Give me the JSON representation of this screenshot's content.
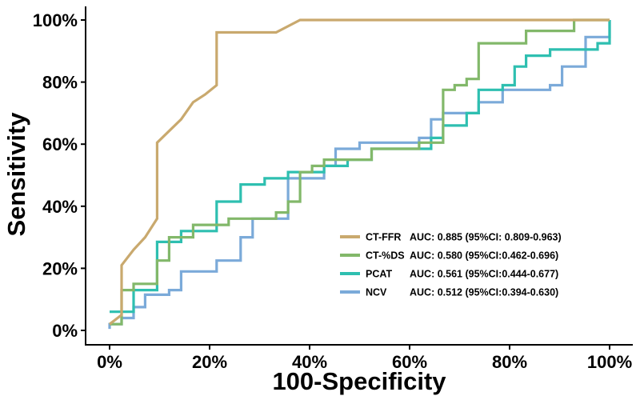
{
  "chart_data": {
    "type": "line",
    "title": "",
    "xlabel": "100-Specificity",
    "ylabel": "Sensitivity",
    "xlim": [
      0,
      100
    ],
    "ylim": [
      0,
      100
    ],
    "x_ticks": [
      "0%",
      "20%",
      "40%",
      "60%",
      "80%",
      "100%"
    ],
    "y_ticks": [
      "0%",
      "20%",
      "40%",
      "60%",
      "80%",
      "100%"
    ],
    "grid": false,
    "legend_position": "bottom-right",
    "series": [
      {
        "name": "CT-FFR",
        "auc_label": "AUC: 0.885 (95%CI: 0.809-0.963)",
        "color": "#C9A96E",
        "points": [
          [
            0,
            2
          ],
          [
            2.4,
            5
          ],
          [
            2.4,
            21
          ],
          [
            4.8,
            26
          ],
          [
            7.1,
            30
          ],
          [
            9.5,
            36
          ],
          [
            9.5,
            60.5
          ],
          [
            14.3,
            68
          ],
          [
            16.7,
            73.5
          ],
          [
            19.1,
            76
          ],
          [
            21.4,
            79
          ],
          [
            21.4,
            96
          ],
          [
            33.3,
            96
          ],
          [
            38.1,
            100
          ],
          [
            100,
            100
          ]
        ]
      },
      {
        "name": "CT-%DS",
        "auc_label": "AUC: 0.580 (95%CI:0.462-0.696)",
        "color": "#82B86A",
        "points": [
          [
            0,
            2
          ],
          [
            2.4,
            2
          ],
          [
            2.4,
            13
          ],
          [
            4.8,
            13
          ],
          [
            4.8,
            15
          ],
          [
            9.5,
            15
          ],
          [
            9.5,
            22.5
          ],
          [
            11.9,
            22.5
          ],
          [
            11.9,
            30
          ],
          [
            16.7,
            30
          ],
          [
            16.7,
            34
          ],
          [
            23.8,
            34
          ],
          [
            23.8,
            36
          ],
          [
            33.3,
            36
          ],
          [
            33.3,
            38
          ],
          [
            35.7,
            38
          ],
          [
            35.7,
            41.5
          ],
          [
            38.1,
            41.5
          ],
          [
            38.1,
            51
          ],
          [
            40.5,
            51
          ],
          [
            40.5,
            53
          ],
          [
            42.9,
            53
          ],
          [
            42.9,
            55
          ],
          [
            52.4,
            55
          ],
          [
            52.4,
            58.5
          ],
          [
            61.9,
            58.5
          ],
          [
            61.9,
            60.5
          ],
          [
            66.7,
            60.5
          ],
          [
            66.7,
            77.5
          ],
          [
            69,
            77.5
          ],
          [
            69,
            79
          ],
          [
            71.4,
            79
          ],
          [
            71.4,
            81
          ],
          [
            73.8,
            81
          ],
          [
            73.8,
            92.5
          ],
          [
            83.3,
            92.5
          ],
          [
            83.3,
            96.5
          ],
          [
            92.9,
            96.5
          ],
          [
            92.9,
            100
          ],
          [
            100,
            100
          ]
        ]
      },
      {
        "name": "PCAT",
        "auc_label": "AUC: 0.561 (95%CI:0.444-0.677)",
        "color": "#2EBFB0",
        "points": [
          [
            0,
            6
          ],
          [
            4.8,
            6
          ],
          [
            4.8,
            13
          ],
          [
            9.5,
            13
          ],
          [
            9.5,
            28.5
          ],
          [
            14.3,
            28.5
          ],
          [
            14.3,
            32
          ],
          [
            21.4,
            32
          ],
          [
            21.4,
            41.5
          ],
          [
            26.2,
            41.5
          ],
          [
            26.2,
            47
          ],
          [
            31,
            47
          ],
          [
            31,
            49
          ],
          [
            35.7,
            49
          ],
          [
            35.7,
            51
          ],
          [
            42.9,
            51
          ],
          [
            42.9,
            53
          ],
          [
            47.6,
            53
          ],
          [
            47.6,
            55
          ],
          [
            52.4,
            55
          ],
          [
            52.4,
            58.5
          ],
          [
            64.3,
            58.5
          ],
          [
            64.3,
            62
          ],
          [
            66.7,
            62
          ],
          [
            66.7,
            66
          ],
          [
            71.4,
            66
          ],
          [
            71.4,
            70
          ],
          [
            73.8,
            70
          ],
          [
            73.8,
            77.5
          ],
          [
            78.6,
            77.5
          ],
          [
            78.6,
            79
          ],
          [
            81,
            79
          ],
          [
            81,
            85
          ],
          [
            83.3,
            85
          ],
          [
            83.3,
            88.5
          ],
          [
            88.1,
            88.5
          ],
          [
            88.1,
            90.5
          ],
          [
            97.6,
            90.5
          ],
          [
            97.6,
            92.5
          ],
          [
            100,
            92.5
          ],
          [
            100,
            100
          ]
        ]
      },
      {
        "name": "NCV",
        "auc_label": "AUC: 0.512 (95%CI:0.394-0.630)",
        "color": "#7BAAD9",
        "points": [
          [
            0,
            0.5
          ],
          [
            0,
            2
          ],
          [
            2.4,
            2
          ],
          [
            2.4,
            4
          ],
          [
            4.8,
            4
          ],
          [
            4.8,
            7.5
          ],
          [
            7.1,
            7.5
          ],
          [
            7.1,
            11.5
          ],
          [
            11.9,
            11.5
          ],
          [
            11.9,
            13
          ],
          [
            14.3,
            13
          ],
          [
            14.3,
            19
          ],
          [
            21.4,
            19
          ],
          [
            21.4,
            22.5
          ],
          [
            26.2,
            22.5
          ],
          [
            26.2,
            30
          ],
          [
            28.6,
            30
          ],
          [
            28.6,
            36
          ],
          [
            35.7,
            36
          ],
          [
            35.7,
            49
          ],
          [
            42.9,
            49
          ],
          [
            42.9,
            53
          ],
          [
            45.2,
            53
          ],
          [
            45.2,
            58.5
          ],
          [
            50,
            58.5
          ],
          [
            50,
            60.5
          ],
          [
            61.9,
            60.5
          ],
          [
            61.9,
            62
          ],
          [
            64.3,
            62
          ],
          [
            64.3,
            68
          ],
          [
            66.7,
            68
          ],
          [
            66.7,
            70
          ],
          [
            73.8,
            70
          ],
          [
            73.8,
            73.5
          ],
          [
            78.6,
            73.5
          ],
          [
            78.6,
            77.5
          ],
          [
            88.1,
            77.5
          ],
          [
            88.1,
            79
          ],
          [
            90.5,
            79
          ],
          [
            90.5,
            85
          ],
          [
            95.2,
            85
          ],
          [
            95.2,
            94.5
          ],
          [
            100,
            94.5
          ],
          [
            100,
            100
          ]
        ]
      }
    ]
  }
}
